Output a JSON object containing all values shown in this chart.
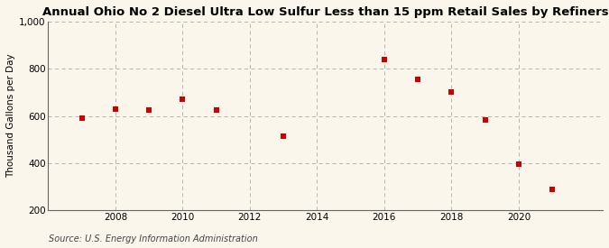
{
  "title": "Annual Ohio No 2 Diesel Ultra Low Sulfur Less than 15 ppm Retail Sales by Refiners",
  "ylabel": "Thousand Gallons per Day",
  "source": "Source: U.S. Energy Information Administration",
  "years": [
    2007,
    2008,
    2009,
    2010,
    2011,
    2013,
    2016,
    2017,
    2018,
    2019,
    2020,
    2021
  ],
  "values": [
    590,
    630,
    625,
    670,
    625,
    515,
    840,
    755,
    700,
    585,
    395,
    290
  ],
  "marker_color": "#cc0000",
  "marker": "s",
  "marker_size": 4,
  "xlim": [
    2006.0,
    2022.5
  ],
  "ylim": [
    200,
    1000
  ],
  "yticks": [
    200,
    400,
    600,
    800,
    1000
  ],
  "ytick_labels": [
    "200",
    "400",
    "600",
    "800",
    "1,000"
  ],
  "xticks": [
    2008,
    2010,
    2012,
    2014,
    2016,
    2018,
    2020
  ],
  "background_color": "#faf6eb",
  "grid_color": "#aaaaaa",
  "title_fontsize": 9.5,
  "axis_label_fontsize": 7.5,
  "tick_fontsize": 7.5,
  "source_fontsize": 7.0
}
